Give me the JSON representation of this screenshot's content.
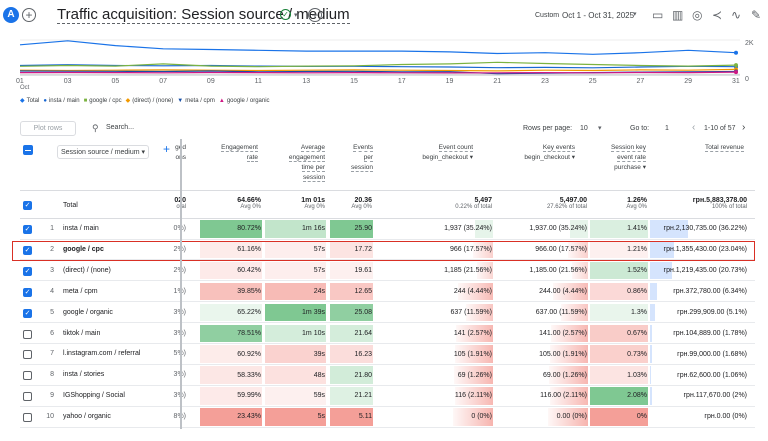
{
  "header": {
    "avatar": "A",
    "title": "Traffic acquisition: Session source / medium",
    "date_label": "Custom",
    "date_range": "Oct 1 - Oct 31, 2025"
  },
  "chart_data": {
    "type": "line",
    "x": [
      "01",
      "03",
      "05",
      "07",
      "09",
      "11",
      "13",
      "15",
      "17",
      "19",
      "21",
      "23",
      "25",
      "27",
      "29",
      "31"
    ],
    "xlabel_extra": "Oct",
    "y_right_ticks": [
      "2K",
      "0"
    ],
    "series": [
      {
        "name": "Total",
        "color": "#1a73e8",
        "values": [
          1900,
          2150,
          1850,
          1650,
          1600,
          1550,
          1500,
          1500,
          1500,
          1450,
          1350,
          1400,
          1300,
          1400,
          1550,
          1400
        ]
      },
      {
        "name": "insta / main",
        "color": "#1967d2",
        "values": [
          600,
          650,
          600,
          580,
          600,
          560,
          540,
          550,
          520,
          500,
          460,
          480,
          450,
          500,
          550,
          520
        ]
      },
      {
        "name": "google / cpc",
        "color": "#7cb342",
        "values": [
          550,
          600,
          560,
          700,
          560,
          520,
          560,
          580,
          660,
          700,
          800,
          720,
          660,
          600,
          560,
          620
        ]
      },
      {
        "name": "(direct) / (none)",
        "color": "#f29900",
        "values": [
          300,
          280,
          300,
          320,
          300,
          280,
          300,
          320,
          300,
          280,
          260,
          300,
          280,
          320,
          300,
          350
        ]
      },
      {
        "name": "meta / cpm",
        "color": "#174ea6",
        "values": [
          250,
          240,
          230,
          220,
          250,
          200,
          220,
          230,
          200,
          210,
          80,
          120,
          150,
          180,
          200,
          220
        ]
      },
      {
        "name": "google / organic",
        "color": "#d01884",
        "values": [
          150,
          160,
          150,
          140,
          160,
          150,
          140,
          150,
          140,
          130,
          140,
          150,
          140,
          160,
          150,
          180
        ]
      }
    ]
  },
  "toolbar": {
    "plot_rows": "Plot rows",
    "search_placeholder": "Search...",
    "rows_per_page_label": "Rows per page:",
    "rows_per_page": "10",
    "goto_label": "Go to:",
    "goto_value": "1",
    "pagination": "1-10 of 57"
  },
  "table": {
    "dimension_header": "Session source / medium",
    "col_partial_header": [
      "ged",
      "ons"
    ],
    "headers": [
      {
        "label": [
          "Engagement",
          "rate"
        ]
      },
      {
        "label": [
          "Average",
          "engagement",
          "time per",
          "session"
        ]
      },
      {
        "label": [
          "Events",
          "per",
          "session"
        ]
      },
      {
        "label": [
          "Event count"
        ],
        "sub": "begin_checkout"
      },
      {
        "label": [
          "Key events"
        ],
        "sub": "begin_checkout"
      },
      {
        "label": [
          "Session key",
          "event rate"
        ],
        "sub": "purchase"
      },
      {
        "label": [
          "Total revenue"
        ]
      }
    ],
    "total": {
      "label": "Total",
      "partial": "020",
      "partial_sub": "otal",
      "values": [
        "64.66%",
        "1m 01s",
        "20.36",
        "5,497",
        "5,497.00",
        "1.26%",
        "грн.5,883,378.00"
      ],
      "subs": [
        "Avg 0%",
        "Avg 0%",
        "Avg 0%",
        "0.22% of total",
        "27.62% of total",
        "Avg 0%",
        "100% of total"
      ]
    },
    "rows": [
      {
        "n": "1",
        "name": "insta / main",
        "checked": true,
        "partial": "0%)",
        "values": [
          "80.72%",
          "1m 16s",
          "25.90",
          "1,937 (35.24%)",
          "1,937.00 (35.24%)",
          "1.41%",
          "грн.2,130,735.00 (36.22%)"
        ]
      },
      {
        "n": "2",
        "name": "google / cpc",
        "checked": true,
        "partial": "2%)",
        "values": [
          "61.16%",
          "57s",
          "17.72",
          "966 (17.57%)",
          "966.00 (17.57%)",
          "1.21%",
          "грн.1,355,430.00 (23.04%)"
        ]
      },
      {
        "n": "3",
        "name": "(direct) / (none)",
        "checked": true,
        "partial": "2%)",
        "values": [
          "60.42%",
          "57s",
          "19.61",
          "1,185 (21.56%)",
          "1,185.00 (21.56%)",
          "1.52%",
          "грн.1,219,435.00 (20.73%)"
        ]
      },
      {
        "n": "4",
        "name": "meta / cpm",
        "checked": true,
        "partial": "1%)",
        "values": [
          "39.85%",
          "24s",
          "12.65",
          "244 (4.44%)",
          "244.00 (4.44%)",
          "0.86%",
          "грн.372,780.00 (6.34%)"
        ]
      },
      {
        "n": "5",
        "name": "google / organic",
        "checked": true,
        "partial": "3%)",
        "values": [
          "65.22%",
          "1m 39s",
          "25.08",
          "637 (11.59%)",
          "637.00 (11.59%)",
          "1.3%",
          "грн.299,909.00 (5.1%)"
        ]
      },
      {
        "n": "6",
        "name": "tiktok / main",
        "checked": false,
        "partial": "3%)",
        "values": [
          "78.51%",
          "1m 10s",
          "21.64",
          "141 (2.57%)",
          "141.00 (2.57%)",
          "0.67%",
          "грн.104,889.00 (1.78%)"
        ]
      },
      {
        "n": "7",
        "name": "l.instagram.com / referral",
        "checked": false,
        "partial": "5%)",
        "values": [
          "60.92%",
          "39s",
          "16.23",
          "105 (1.91%)",
          "105.00 (1.91%)",
          "0.73%",
          "грн.99,000.00 (1.68%)"
        ]
      },
      {
        "n": "8",
        "name": "insta / stories",
        "checked": false,
        "partial": "3%)",
        "values": [
          "58.33%",
          "48s",
          "21.80",
          "69 (1.26%)",
          "69.00 (1.26%)",
          "1.03%",
          "грн.62,600.00 (1.06%)"
        ]
      },
      {
        "n": "9",
        "name": "IGShopping / Social",
        "checked": false,
        "partial": "3%)",
        "values": [
          "59.99%",
          "59s",
          "21.21",
          "116 (2.11%)",
          "116.00 (2.11%)",
          "2.08%",
          "грн.117,670.00 (2%)"
        ]
      },
      {
        "n": "10",
        "name": "yahoo / organic",
        "checked": false,
        "partial": "8%)",
        "values": [
          "23.43%",
          "5s",
          "5.11",
          "0 (0%)",
          "0.00 (0%)",
          "0%",
          "грн.0.00 (0%)"
        ]
      }
    ]
  }
}
